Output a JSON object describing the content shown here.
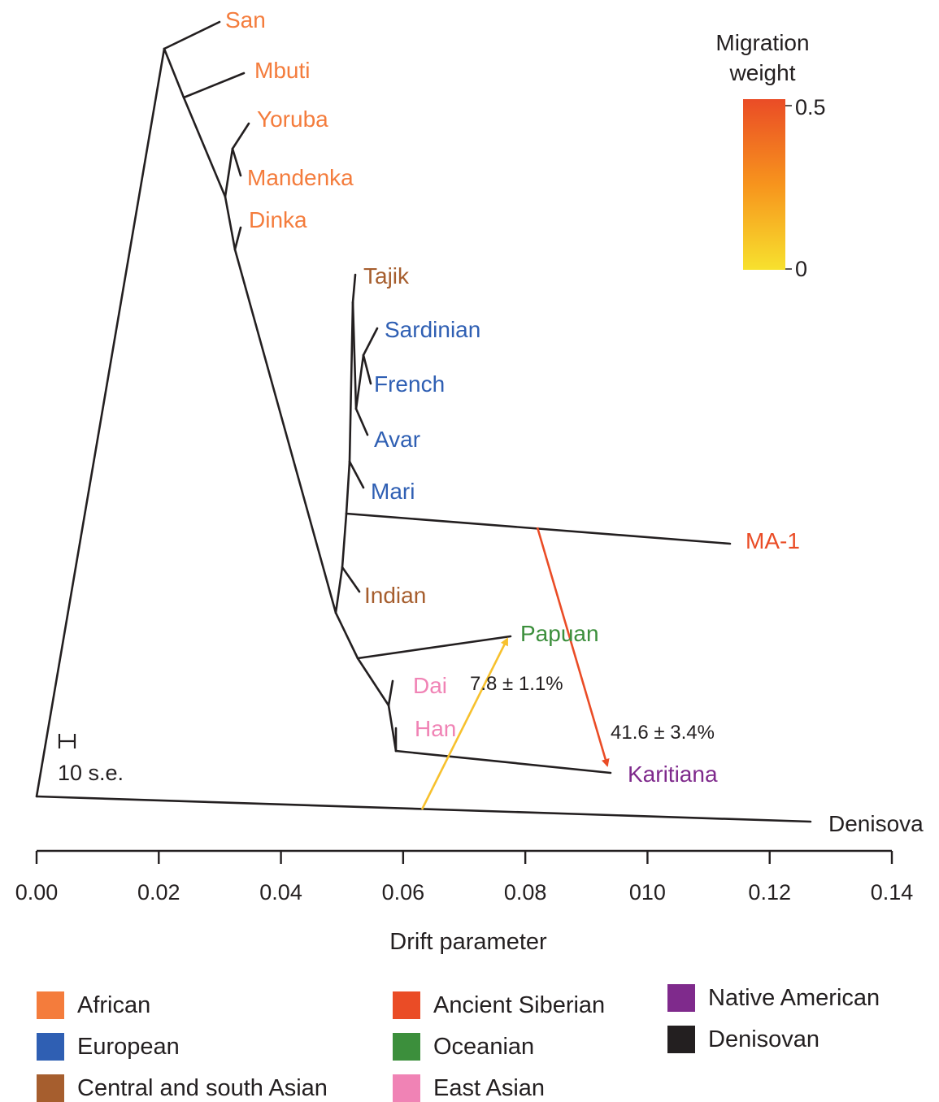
{
  "chart": {
    "colorbar_title_line1": "Migration",
    "colorbar_title_line2": "weight",
    "colorbar_max_label": "0.5",
    "colorbar_min_label": "0",
    "colorbar_colors": [
      "#f7e12e",
      "#f7941d",
      "#ea4c26"
    ],
    "scale_bar_label": "10 s.e.",
    "xlabel": "Drift parameter",
    "x_ticks": [
      "0.00",
      "0.02",
      "0.04",
      "0.06",
      "0.08",
      "010",
      "0.12",
      "0.14"
    ],
    "x_tick_values": [
      0.0,
      0.02,
      0.04,
      0.06,
      0.08,
      0.1,
      0.12,
      0.14
    ],
    "xlim": [
      0.0,
      0.14
    ]
  },
  "leaves": {
    "san": {
      "label": "San",
      "color": "#f47c3c"
    },
    "mbuti": {
      "label": "Mbuti",
      "color": "#f47c3c"
    },
    "yoruba": {
      "label": "Yoruba",
      "color": "#f47c3c"
    },
    "mandenka": {
      "label": "Mandenka",
      "color": "#f47c3c"
    },
    "dinka": {
      "label": "Dinka",
      "color": "#f47c3c"
    },
    "tajik": {
      "label": "Tajik",
      "color": "#a65e2e"
    },
    "sardinian": {
      "label": "Sardinian",
      "color": "#2f5fb3"
    },
    "french": {
      "label": "French",
      "color": "#2f5fb3"
    },
    "avar": {
      "label": "Avar",
      "color": "#2f5fb3"
    },
    "mari": {
      "label": "Mari",
      "color": "#2f5fb3"
    },
    "ma1": {
      "label": "MA-1",
      "color": "#ea4c26"
    },
    "indian": {
      "label": "Indian",
      "color": "#a65e2e"
    },
    "papuan": {
      "label": "Papuan",
      "color": "#3c8f3c"
    },
    "dai": {
      "label": "Dai",
      "color": "#f083b5"
    },
    "han": {
      "label": "Han",
      "color": "#f083b5"
    },
    "karitiana": {
      "label": "Karitiana",
      "color": "#7f2a8c"
    },
    "denisova": {
      "label": "Denisova",
      "color": "#231f20"
    }
  },
  "migrations": {
    "ma1_to_karitiana": {
      "label": "41.6 ± 3.4%",
      "color": "#ea4c26"
    },
    "to_papuan": {
      "label": "7.8 ± 1.1%",
      "color": "#f7c12e"
    }
  },
  "legend": [
    {
      "label": "African",
      "color": "#f47c3c"
    },
    {
      "label": "European",
      "color": "#2f5fb3"
    },
    {
      "label": "Central and south Asian",
      "color": "#a65e2e"
    },
    {
      "label": "Ancient Siberian",
      "color": "#ea4c26"
    },
    {
      "label": "Oceanian",
      "color": "#3c8f3c"
    },
    {
      "label": "East Asian",
      "color": "#f083b5"
    },
    {
      "label": "Native American",
      "color": "#7f2a8c"
    },
    {
      "label": "Denisovan",
      "color": "#231f20"
    }
  ]
}
